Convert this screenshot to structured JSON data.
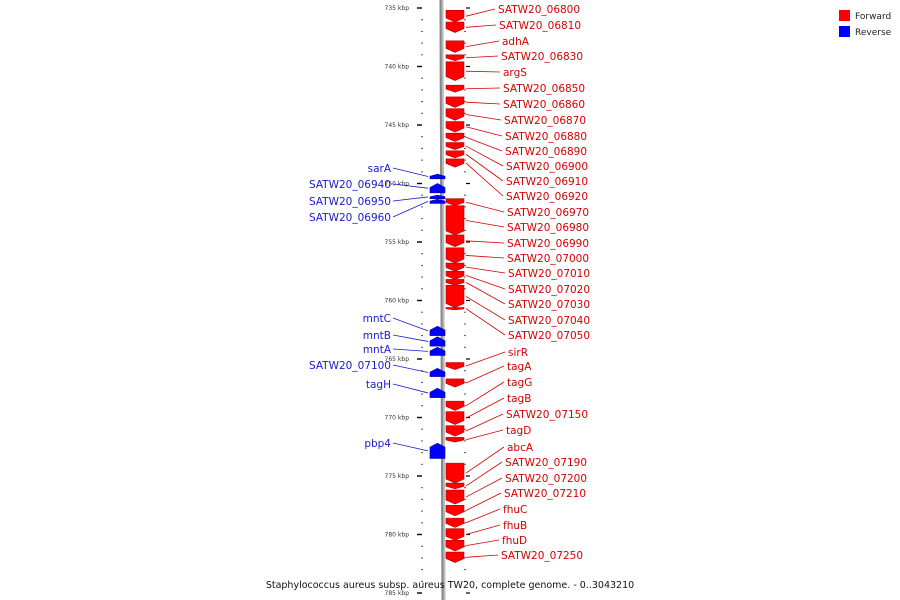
{
  "legend": [
    {
      "label": "Forward",
      "color": "#ff0000"
    },
    {
      "label": "Reverse",
      "color": "#0000ff"
    }
  ],
  "colors": {
    "forward": "#ff0000",
    "reverse": "#0000ff",
    "forward_text": "#d40000",
    "reverse_text": "#1a1acc",
    "backbone": "#888888"
  },
  "footer": "Staphylococcus aureus subsp. aureus TW20, complete genome. - 0..3043210",
  "ticks": [
    {
      "kbp": 735,
      "label": "735 kbp"
    },
    {
      "kbp": 740,
      "label": "740 kbp"
    },
    {
      "kbp": 745,
      "label": "745 kbp"
    },
    {
      "kbp": 750,
      "label": "750 kbp"
    },
    {
      "kbp": 755,
      "label": "755 kbp"
    },
    {
      "kbp": 760,
      "label": "760 kbp"
    },
    {
      "kbp": 765,
      "label": "765 kbp"
    },
    {
      "kbp": 770,
      "label": "770 kbp"
    },
    {
      "kbp": 775,
      "label": "775 kbp"
    },
    {
      "kbp": 780,
      "label": "780 kbp"
    },
    {
      "kbp": 785,
      "label": "785 kbp"
    }
  ],
  "forward_genes": [
    {
      "name": "SATW20_06800",
      "start": 735.2,
      "end": 736.2
    },
    {
      "name": "SATW20_06810",
      "start": 736.2,
      "end": 737.1
    },
    {
      "name": "adhA",
      "start": 737.8,
      "end": 738.8
    },
    {
      "name": "SATW20_06830",
      "start": 739.0,
      "end": 739.5
    },
    {
      "name": "argS",
      "start": 739.6,
      "end": 741.2
    },
    {
      "name": "SATW20_06850",
      "start": 741.6,
      "end": 742.2
    },
    {
      "name": "SATW20_06860",
      "start": 742.6,
      "end": 743.5
    },
    {
      "name": "SATW20_06870",
      "start": 743.6,
      "end": 744.6
    },
    {
      "name": "SATW20_06880",
      "start": 744.7,
      "end": 745.6
    },
    {
      "name": "SATW20_06890",
      "start": 745.7,
      "end": 746.4
    },
    {
      "name": "SATW20_06900",
      "start": 746.5,
      "end": 747.1
    },
    {
      "name": "SATW20_06910",
      "start": 747.2,
      "end": 747.8
    },
    {
      "name": "SATW20_06920",
      "start": 747.9,
      "end": 748.6
    },
    {
      "name": "SATW20_06970",
      "start": 751.3,
      "end": 751.9
    },
    {
      "name": "SATW20_06980",
      "start": 751.9,
      "end": 754.4
    },
    {
      "name": "SATW20_06990",
      "start": 754.4,
      "end": 755.4
    },
    {
      "name": "SATW20_07000",
      "start": 755.5,
      "end": 756.8
    },
    {
      "name": "SATW20_07010",
      "start": 756.8,
      "end": 757.5
    },
    {
      "name": "SATW20_07020",
      "start": 757.5,
      "end": 758.2
    },
    {
      "name": "SATW20_07030",
      "start": 758.2,
      "end": 758.7
    },
    {
      "name": "SATW20_07040",
      "start": 758.7,
      "end": 760.6
    },
    {
      "name": "SATW20_07050",
      "start": 760.6,
      "end": 760.8
    },
    {
      "name": "sirR",
      "start": 765.3,
      "end": 765.9
    },
    {
      "name": "tagA",
      "start": 766.7,
      "end": 767.4
    },
    {
      "name": "tagG",
      "start": 768.6,
      "end": 769.4
    },
    {
      "name": "tagB",
      "start": 769.5,
      "end": 770.6
    },
    {
      "name": "SATW20_07150",
      "start": 770.7,
      "end": 771.6
    },
    {
      "name": "tagD",
      "start": 771.7,
      "end": 772.1
    },
    {
      "name": "abcA",
      "start": 773.9,
      "end": 775.6
    },
    {
      "name": "SATW20_07190",
      "start": 775.6,
      "end": 776.1
    },
    {
      "name": "SATW20_07200",
      "start": 776.2,
      "end": 777.4
    },
    {
      "name": "SATW20_07210",
      "start": 777.5,
      "end": 778.4
    },
    {
      "name": "fhuC",
      "start": 778.6,
      "end": 779.4
    },
    {
      "name": "fhuB",
      "start": 779.5,
      "end": 780.5
    },
    {
      "name": "fhuD",
      "start": 780.5,
      "end": 781.4
    },
    {
      "name": "SATW20_07250",
      "start": 781.5,
      "end": 782.4
    }
  ],
  "reverse_genes": [
    {
      "name": "sarA",
      "start": 749.2,
      "end": 749.6
    },
    {
      "name": "SATW20_06940",
      "start": 750.0,
      "end": 750.8
    },
    {
      "name": "SATW20_06950",
      "start": 751.0,
      "end": 751.3
    },
    {
      "name": "SATW20_06960",
      "start": 751.35,
      "end": 751.7
    },
    {
      "name": "mntC",
      "start": 762.2,
      "end": 763.0
    },
    {
      "name": "mntB",
      "start": 763.1,
      "end": 763.9
    },
    {
      "name": "mntA",
      "start": 764.0,
      "end": 764.7
    },
    {
      "name": "SATW20_07100",
      "start": 765.8,
      "end": 766.5
    },
    {
      "name": "tagH",
      "start": 767.5,
      "end": 768.3
    },
    {
      "name": "pbp4",
      "start": 772.2,
      "end": 773.5
    }
  ]
}
